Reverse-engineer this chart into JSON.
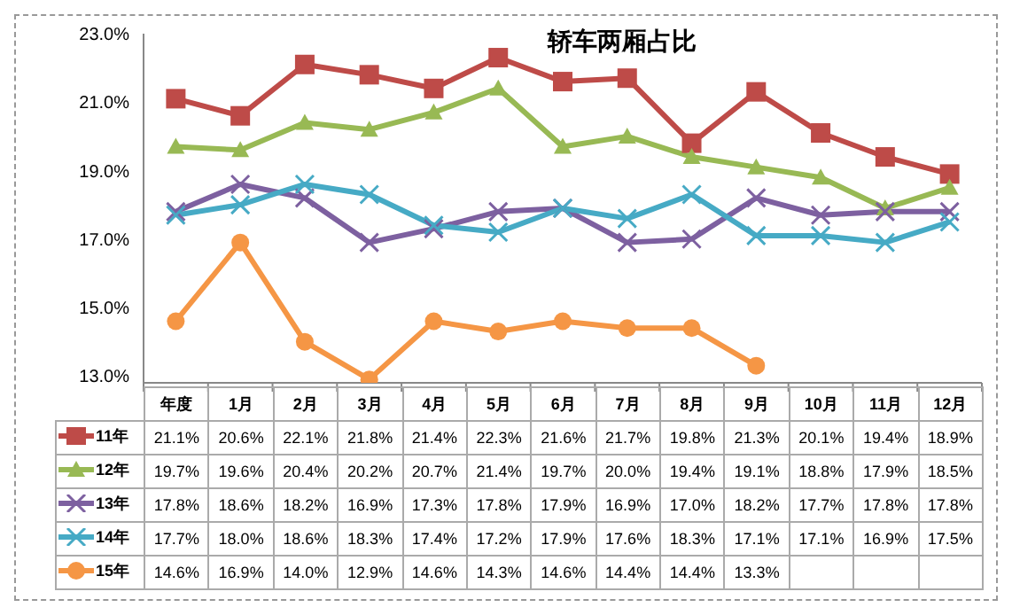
{
  "chart_data": {
    "type": "line",
    "title": "轿车两厢占比",
    "categories": [
      "年度",
      "1月",
      "2月",
      "3月",
      "4月",
      "5月",
      "6月",
      "7月",
      "8月",
      "9月",
      "10月",
      "11月",
      "12月"
    ],
    "series": [
      {
        "name": "11年",
        "color": "#be4b48",
        "marker": "square",
        "values": [
          21.1,
          20.6,
          22.1,
          21.8,
          21.4,
          22.3,
          21.6,
          21.7,
          19.8,
          21.3,
          20.1,
          19.4,
          18.9
        ],
        "value_labels": [
          "21.1%",
          "20.6%",
          "22.1%",
          "21.8%",
          "21.4%",
          "22.3%",
          "21.6%",
          "21.7%",
          "19.8%",
          "21.3%",
          "20.1%",
          "19.4%",
          "18.9%"
        ]
      },
      {
        "name": "12年",
        "color": "#98b954",
        "marker": "triangle",
        "values": [
          19.7,
          19.6,
          20.4,
          20.2,
          20.7,
          21.4,
          19.7,
          20.0,
          19.4,
          19.1,
          18.8,
          17.9,
          18.5
        ],
        "value_labels": [
          "19.7%",
          "19.6%",
          "20.4%",
          "20.2%",
          "20.7%",
          "21.4%",
          "19.7%",
          "20.0%",
          "19.4%",
          "19.1%",
          "18.8%",
          "17.9%",
          "18.5%"
        ]
      },
      {
        "name": "13年",
        "color": "#7d60a0",
        "marker": "cross",
        "values": [
          17.8,
          18.6,
          18.2,
          16.9,
          17.3,
          17.8,
          17.9,
          16.9,
          17.0,
          18.2,
          17.7,
          17.8,
          17.8
        ],
        "value_labels": [
          "17.8%",
          "18.6%",
          "18.2%",
          "16.9%",
          "17.3%",
          "17.8%",
          "17.9%",
          "16.9%",
          "17.0%",
          "18.2%",
          "17.7%",
          "17.8%",
          "17.8%"
        ]
      },
      {
        "name": "14年",
        "color": "#46aac5",
        "marker": "cross",
        "values": [
          17.7,
          18.0,
          18.6,
          18.3,
          17.4,
          17.2,
          17.9,
          17.6,
          18.3,
          17.1,
          17.1,
          16.9,
          17.5
        ],
        "value_labels": [
          "17.7%",
          "18.0%",
          "18.6%",
          "18.3%",
          "17.4%",
          "17.2%",
          "17.9%",
          "17.6%",
          "18.3%",
          "17.1%",
          "17.1%",
          "16.9%",
          "17.5%"
        ]
      },
      {
        "name": "15年",
        "color": "#f59645",
        "marker": "circle",
        "values": [
          14.6,
          16.9,
          14.0,
          12.9,
          14.6,
          14.3,
          14.6,
          14.4,
          14.4,
          13.3,
          null,
          null,
          null
        ],
        "value_labels": [
          "14.6%",
          "16.9%",
          "14.0%",
          "12.9%",
          "14.6%",
          "14.3%",
          "14.6%",
          "14.4%",
          "14.4%",
          "13.3%",
          null,
          null,
          null
        ]
      }
    ],
    "ylim": [
      12.8,
      23
    ],
    "yticks": [
      {
        "value": 13,
        "label": "13.0%"
      },
      {
        "value": 15,
        "label": "15.0%"
      },
      {
        "value": 17,
        "label": "17.0%"
      },
      {
        "value": 19,
        "label": "19.0%"
      },
      {
        "value": 21,
        "label": "21.0%"
      },
      {
        "value": 23,
        "label": "23.0%"
      }
    ],
    "legend": "bottom",
    "grid": false
  }
}
